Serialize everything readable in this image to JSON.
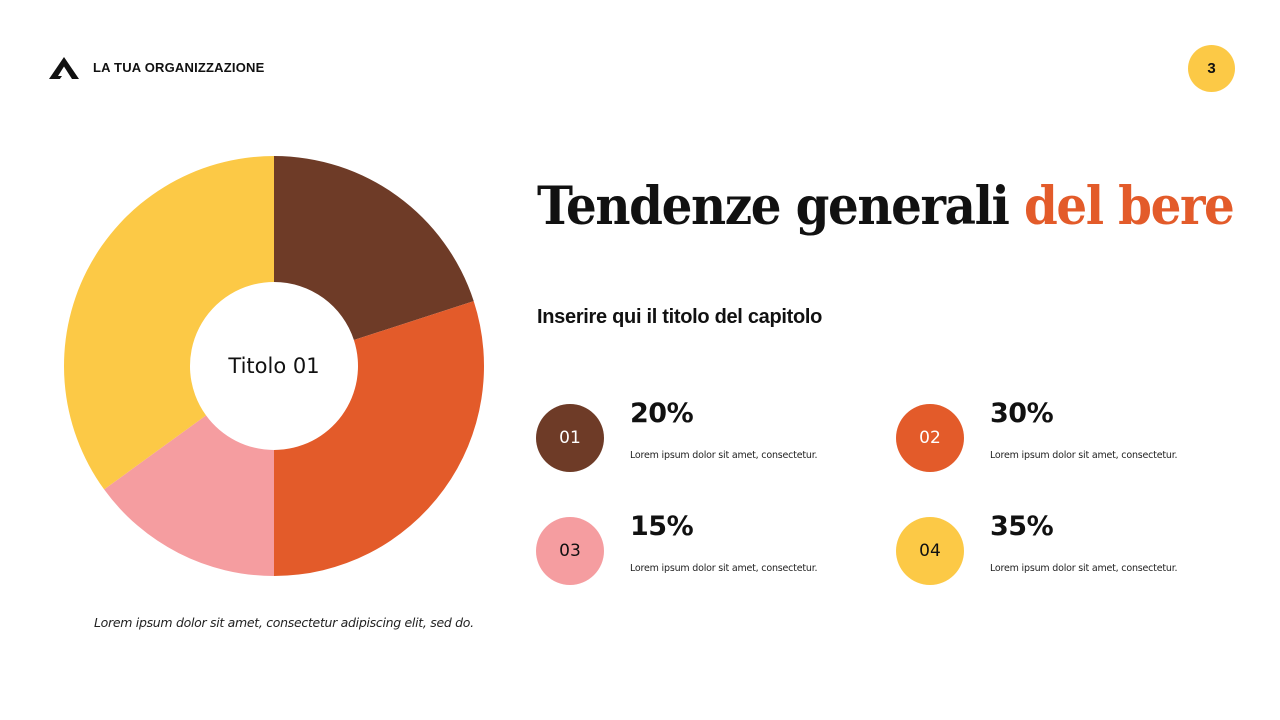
{
  "header": {
    "logo_icon": "triangle-logo-icon",
    "organization": "LA TUA ORGANIZZAZIONE",
    "page_number": "3"
  },
  "title": {
    "main": "Tendenze generali ",
    "accent": "del bere",
    "accent_color": "#e35b2a"
  },
  "subtitle": "Inserire qui il titolo del capitolo",
  "chart_center_label": "Titolo 01",
  "caption": "Lorem ipsum dolor sit amet, consectetur adipiscing elit, sed do.",
  "stats": [
    {
      "num": "01",
      "pct": "20%",
      "desc": "Lorem ipsum dolor sit amet, consectetur.",
      "color": "#6e3b27",
      "text_color": "#ffffff"
    },
    {
      "num": "02",
      "pct": "30%",
      "desc": "Lorem ipsum dolor sit amet, consectetur.",
      "color": "#e35b2a",
      "text_color": "#ffffff"
    },
    {
      "num": "03",
      "pct": "15%",
      "desc": "Lorem ipsum dolor sit amet, consectetur.",
      "color": "#f59da0",
      "text_color": "#111111"
    },
    {
      "num": "04",
      "pct": "35%",
      "desc": "Lorem ipsum dolor sit amet, consectetur.",
      "color": "#fcc946",
      "text_color": "#111111"
    }
  ],
  "chart_data": {
    "type": "pie",
    "variant": "donut",
    "title": "Titolo 01",
    "categories": [
      "01",
      "02",
      "03",
      "04"
    ],
    "values": [
      20,
      30,
      15,
      35
    ],
    "colors": [
      "#6e3b27",
      "#e35b2a",
      "#f59da0",
      "#fcc946"
    ],
    "start_angle": "12 o'clock, clockwise",
    "legend": "none (stats listed to the right)"
  }
}
